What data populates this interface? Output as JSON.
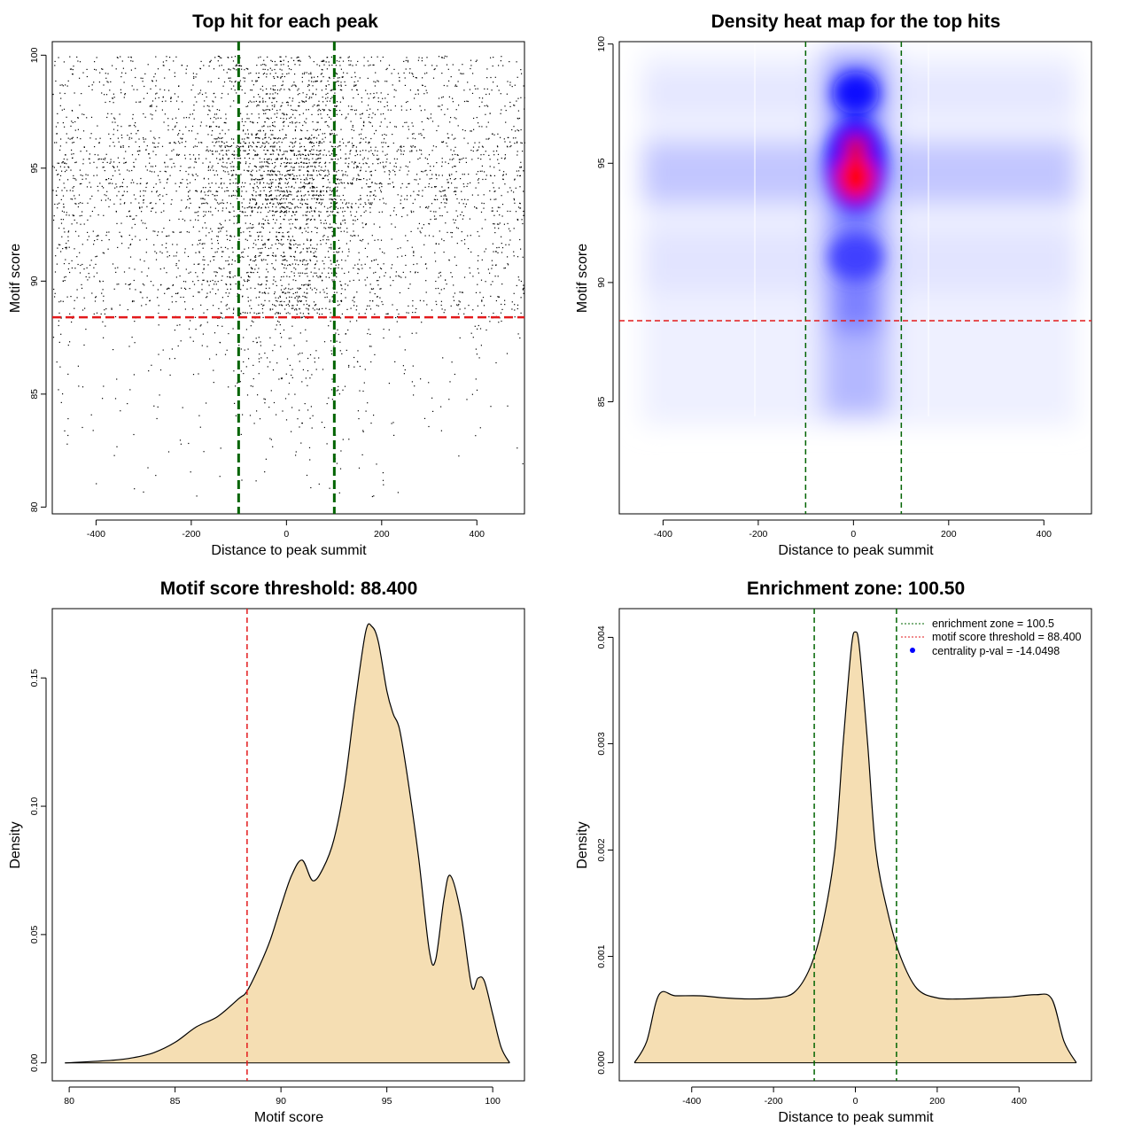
{
  "chart_data": [
    {
      "type": "scatter",
      "title": "Top hit for each peak",
      "xlabel": "Distance to peak summit",
      "ylabel": "Motif score",
      "xlim": [
        -500,
        500
      ],
      "ylim": [
        80,
        100
      ],
      "x_ticks": [
        -400,
        -200,
        0,
        200,
        400
      ],
      "y_ticks": [
        80,
        85,
        90,
        95,
        100
      ],
      "hlines": [
        {
          "y": 88.4,
          "color": "#e31a1c"
        }
      ],
      "vlines": [
        {
          "x": -100.5,
          "color": "#006400"
        },
        {
          "x": 100.5,
          "color": "#006400"
        }
      ],
      "point_color": "#000000",
      "note": "dense point cloud of top hits, densest near distance 0 and scores 90-100"
    },
    {
      "type": "heatmap",
      "title": "Density heat map for the top hits",
      "xlabel": "Distance to peak summit",
      "ylabel": "Motif score",
      "xlim": [
        -500,
        500
      ],
      "ylim": [
        80,
        100
      ],
      "x_ticks": [
        -400,
        -200,
        0,
        200,
        400
      ],
      "y_ticks": [
        85,
        90,
        95,
        100
      ],
      "hlines": [
        {
          "y": 88.4,
          "color": "#e31a1c"
        }
      ],
      "vlines": [
        {
          "x": -100.5,
          "color": "#006400"
        },
        {
          "x": 100.5,
          "color": "#006400"
        }
      ],
      "colors": [
        "#ffffff",
        "#0000ff",
        "#ff0000"
      ],
      "hotspots": [
        {
          "x": 0,
          "y": 94.4,
          "level": "max"
        },
        {
          "x": 0,
          "y": 95.6,
          "level": "high"
        },
        {
          "x": 0,
          "y": 98,
          "level": "high"
        },
        {
          "x": 0,
          "y": 91,
          "level": "medium"
        }
      ]
    },
    {
      "type": "area",
      "title": "Motif score threshold: 88.400",
      "xlabel": "Motif score",
      "ylabel": "Density",
      "xlim": [
        80,
        100
      ],
      "ylim": [
        0,
        0.15
      ],
      "x_ticks": [
        80,
        85,
        90,
        95,
        100
      ],
      "y_ticks": [
        "0.00",
        "0.05",
        "0.10",
        "0.15"
      ],
      "vlines": [
        {
          "x": 88.4,
          "color": "#e31a1c"
        }
      ],
      "fill": "#f5deb3",
      "x": [
        79.8,
        82,
        83,
        84,
        85,
        86,
        87,
        88,
        88.4,
        89,
        89.5,
        90,
        90.5,
        91,
        91.5,
        92,
        92.5,
        93,
        93.5,
        94,
        94.3,
        94.6,
        95,
        95.3,
        95.6,
        96,
        96.5,
        97,
        97.3,
        97.7,
        98,
        98.5,
        99,
        99.3,
        99.6,
        100,
        100.4,
        100.8
      ],
      "values": [
        0,
        0.001,
        0.002,
        0.004,
        0.008,
        0.014,
        0.018,
        0.025,
        0.028,
        0.038,
        0.048,
        0.061,
        0.073,
        0.079,
        0.071,
        0.076,
        0.087,
        0.108,
        0.14,
        0.168,
        0.17,
        0.164,
        0.145,
        0.136,
        0.13,
        0.11,
        0.08,
        0.044,
        0.04,
        0.064,
        0.073,
        0.058,
        0.03,
        0.033,
        0.032,
        0.019,
        0.006,
        0
      ]
    },
    {
      "type": "area",
      "title": "Enrichment zone: 100.50",
      "xlabel": "Distance to peak summit",
      "ylabel": "Density",
      "xlim": [
        -540,
        540
      ],
      "ylim": [
        0,
        0.004
      ],
      "x_ticks": [
        -400,
        -200,
        0,
        200,
        400
      ],
      "y_ticks": [
        "0.000",
        "0.001",
        "0.002",
        "0.003",
        "0.004"
      ],
      "vlines": [
        {
          "x": -100.5,
          "color": "#006400"
        },
        {
          "x": 100.5,
          "color": "#006400"
        }
      ],
      "fill": "#f5deb3",
      "x": [
        -540,
        -510,
        -480,
        -440,
        -380,
        -320,
        -260,
        -200,
        -150,
        -110,
        -80,
        -50,
        -30,
        -10,
        0,
        10,
        30,
        50,
        80,
        110,
        150,
        200,
        260,
        320,
        380,
        440,
        480,
        510,
        540
      ],
      "values": [
        0,
        0.0002,
        0.00064,
        0.00063,
        0.00063,
        0.00061,
        0.0006,
        0.00061,
        0.00066,
        0.0009,
        0.0013,
        0.002,
        0.003,
        0.0039,
        0.00405,
        0.0039,
        0.003,
        0.002,
        0.0014,
        0.001,
        0.0007,
        0.00061,
        0.0006,
        0.00061,
        0.00062,
        0.00064,
        0.0006,
        0.0002,
        0
      ],
      "legend": {
        "position": "top-right",
        "entries": [
          {
            "label": "enrichment zone = 100.5",
            "color": "#006400",
            "style": "dotted-line"
          },
          {
            "label": "motif score threshold = 88.400",
            "color": "#e31a1c",
            "style": "dotted-line"
          },
          {
            "label": "centrality p-val = -14.0498",
            "color": "#0000ff",
            "style": "point"
          }
        ]
      }
    }
  ]
}
